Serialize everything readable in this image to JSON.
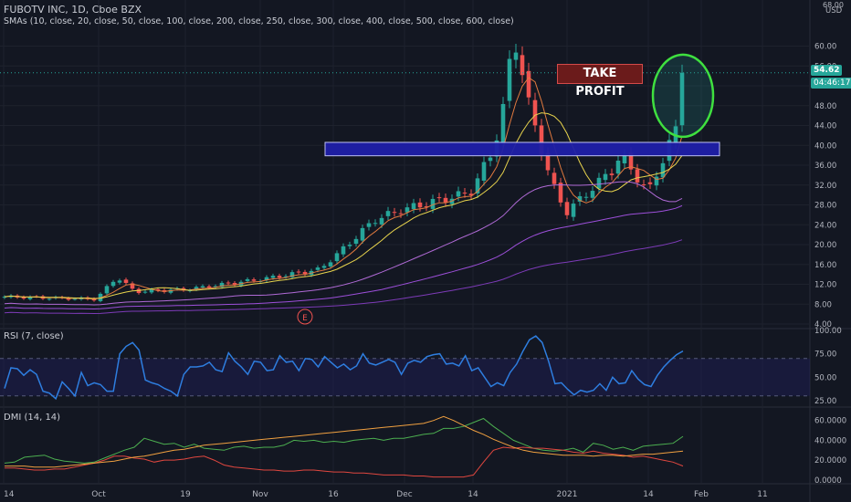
{
  "header": {
    "symbol_line": "FUBOTV INC, 1D, Cboe BZX",
    "indicator_line": "SMAs (10, close, 20, close, 50, close, 100, close, 200, close, 250, close, 300, close, 400, close, 500, close, 600, close)"
  },
  "price_axis": {
    "currency": "USD",
    "ticks": [
      "60.00",
      "56.00",
      "52.00",
      "48.00",
      "44.00",
      "40.00",
      "36.00",
      "32.00",
      "28.00",
      "24.00",
      "20.00",
      "16.00",
      "12.00",
      "8.00",
      "4.00"
    ],
    "top_tick": "68.00",
    "last_price": "54.62",
    "countdown": "04:46:17",
    "last_price_color": "#26a69a"
  },
  "annotations": {
    "take_profit": "TAKE PROFIT",
    "earnings_marker": "E"
  },
  "rsi": {
    "title": "RSI (7, close)",
    "ticks": [
      "100.00",
      "75.00",
      "50.00",
      "25.00"
    ],
    "color": "#2e7ee0"
  },
  "dmi": {
    "title": "DMI (14, 14)",
    "ticks": [
      "60.0000",
      "40.0000",
      "20.0000",
      "0.0000"
    ]
  },
  "time_axis": {
    "labels": [
      "14",
      "Oct",
      "19",
      "Nov",
      "16",
      "Dec",
      "14",
      "2021",
      "14",
      "Feb",
      "11"
    ]
  },
  "colors": {
    "background": "#131722",
    "up": "#26a69a",
    "down": "#ef5350",
    "resistance_fill": "#1f1fa8",
    "circle": "#3fe03f"
  },
  "chart_data": [
    {
      "type": "candlestick",
      "title": "FUBOTV INC, 1D, Cboe BZX",
      "ylabel": "USD",
      "ylim": [
        4,
        68
      ],
      "annotations": [
        "TAKE PROFIT",
        "E"
      ],
      "close_path": [
        {
          "x": "Sep 14",
          "y": 9.5
        },
        {
          "x": "Oct 1",
          "y": 9.0
        },
        {
          "x": "Oct 5",
          "y": 13.5
        },
        {
          "x": "Oct 9",
          "y": 10.5
        },
        {
          "x": "Oct 19",
          "y": 11.0
        },
        {
          "x": "Nov 2",
          "y": 13.0
        },
        {
          "x": "Nov 16",
          "y": 15.0
        },
        {
          "x": "Nov 20",
          "y": 19.0
        },
        {
          "x": "Nov 25",
          "y": 25.0
        },
        {
          "x": "Dec 1",
          "y": 27.0
        },
        {
          "x": "Dec 14",
          "y": 30.5
        },
        {
          "x": "Dec 18",
          "y": 39.0
        },
        {
          "x": "Dec 21",
          "y": 49.0
        },
        {
          "x": "Dec 22",
          "y": 62.0
        },
        {
          "x": "Dec 23",
          "y": 57.0
        },
        {
          "x": "Dec 24",
          "y": 49.0
        },
        {
          "x": "Dec 28",
          "y": 41.0
        },
        {
          "x": "Jan 4",
          "y": 32.0
        },
        {
          "x": "Jan 6",
          "y": 26.5
        },
        {
          "x": "Jan 11",
          "y": 35.0
        },
        {
          "x": "Jan 13",
          "y": 38.0
        },
        {
          "x": "Jan 19",
          "y": 30.5
        },
        {
          "x": "Jan 22",
          "y": 41.0
        },
        {
          "x": "Jan 25",
          "y": 44.0
        },
        {
          "x": "Jan 26",
          "y": 54.62
        }
      ],
      "resistance_zone": [
        38.5,
        40.0
      ]
    },
    {
      "type": "line",
      "title": "RSI (7, close)",
      "ylim": [
        20,
        100
      ],
      "series": [
        {
          "name": "RSI (7, close)",
          "values": [
            38,
            60,
            59,
            52,
            58,
            53,
            35,
            33,
            27,
            45,
            38,
            30,
            55,
            41,
            44,
            42,
            35,
            35,
            75,
            83,
            87,
            79,
            47,
            44,
            42,
            38,
            35,
            30,
            53,
            61,
            61,
            62,
            66,
            58,
            56,
            76,
            67,
            61,
            53,
            67,
            66,
            57,
            58,
            73,
            66,
            67,
            57,
            70,
            69,
            61,
            72,
            66,
            60,
            64,
            58,
            62,
            75,
            65,
            63,
            66,
            69,
            66,
            53,
            65,
            68,
            66,
            72,
            74,
            75,
            64,
            65,
            62,
            73,
            57,
            60,
            50,
            40,
            44,
            41,
            55,
            64,
            78,
            90,
            94,
            87,
            67,
            43,
            44,
            37,
            31,
            36,
            34,
            36,
            43,
            36,
            50,
            43,
            44,
            57,
            48,
            42,
            40,
            52,
            61,
            68,
            74,
            78
          ]
        }
      ]
    },
    {
      "type": "line",
      "title": "DMI (14, 14)",
      "ylim": [
        -2,
        68
      ],
      "series": [
        {
          "name": "",
          "values": [
            17,
            18,
            23,
            24,
            25,
            21,
            19,
            18,
            17,
            18,
            22,
            26,
            30,
            33,
            42,
            39,
            36,
            37,
            33,
            36,
            32,
            31,
            30,
            33,
            34,
            32,
            33,
            33,
            35,
            40,
            39,
            40,
            38,
            39,
            38,
            40,
            41,
            42,
            40,
            42,
            42,
            44,
            46,
            47,
            52,
            52,
            54,
            58,
            62,
            54,
            47,
            40,
            36,
            32,
            30,
            29,
            30,
            32,
            28,
            37,
            35,
            31,
            33,
            30,
            34,
            35,
            36,
            37,
            44
          ]
        },
        {
          "name": "",
          "values": [
            12,
            12,
            11,
            10,
            10,
            11,
            11,
            13,
            15,
            17,
            20,
            24,
            24,
            22,
            21,
            18,
            20,
            20,
            21,
            23,
            24,
            20,
            15,
            13,
            12,
            11,
            10,
            10,
            9,
            9,
            10,
            10,
            9,
            8,
            8,
            7,
            7,
            6,
            5,
            5,
            5,
            4,
            4,
            3,
            3,
            3,
            3,
            5,
            18,
            30,
            33,
            32,
            33,
            32,
            32,
            31,
            30,
            28,
            27,
            29,
            27,
            26,
            25,
            23,
            24,
            22,
            20,
            18,
            14
          ]
        },
        {
          "name": "",
          "values": [
            14,
            14,
            14,
            13,
            13,
            13,
            14,
            15,
            16,
            17,
            18,
            19,
            21,
            23,
            24,
            26,
            28,
            30,
            31,
            33,
            35,
            36,
            37,
            38,
            39,
            40,
            41,
            42,
            43,
            44,
            45,
            46,
            47,
            48,
            49,
            50,
            51,
            52,
            53,
            54,
            55,
            56,
            57,
            60,
            64,
            60,
            55,
            50,
            46,
            41,
            37,
            33,
            30,
            28,
            27,
            26,
            25,
            25,
            25,
            24,
            25,
            25,
            24,
            25,
            26,
            26,
            27,
            28,
            29
          ]
        }
      ]
    }
  ]
}
